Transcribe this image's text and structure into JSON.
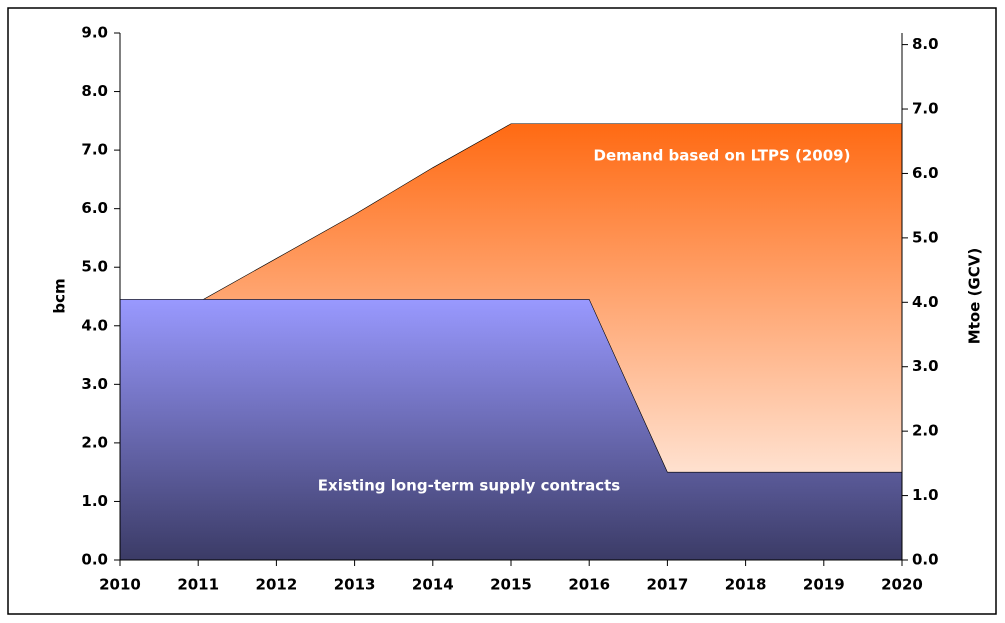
{
  "chart_data": {
    "type": "area",
    "x": [
      2010,
      2011,
      2012,
      2013,
      2014,
      2015,
      2016,
      2017,
      2018,
      2019,
      2020
    ],
    "series": [
      {
        "name": "Demand based on LTPS (2009)",
        "color": "#ff6a13",
        "values": [
          null,
          4.4,
          5.15,
          5.9,
          6.7,
          7.45,
          7.45,
          7.45,
          7.45,
          7.45,
          7.45
        ]
      },
      {
        "name": "Existing long-term supply contracts",
        "color": "#9999ff",
        "values": [
          4.45,
          4.45,
          4.45,
          4.45,
          4.45,
          4.45,
          4.45,
          1.5,
          1.5,
          1.5,
          1.5
        ]
      }
    ],
    "y_label": "bcm",
    "y2_label": "Mtoe (GCV)",
    "xlim": [
      2010,
      2020
    ],
    "xticks": [
      2010,
      2011,
      2012,
      2013,
      2014,
      2015,
      2016,
      2017,
      2018,
      2019,
      2020
    ],
    "ylim": [
      0,
      9
    ],
    "yticks": [
      {
        "value": 0,
        "label": "0.0"
      },
      {
        "value": 1,
        "label": "1.0"
      },
      {
        "value": 2,
        "label": "2.0"
      },
      {
        "value": 3,
        "label": "3.0"
      },
      {
        "value": 4,
        "label": "4.0"
      },
      {
        "value": 5,
        "label": "5.0"
      },
      {
        "value": 6,
        "label": "6.0"
      },
      {
        "value": 7,
        "label": "7.0"
      },
      {
        "value": 8,
        "label": "8.0"
      },
      {
        "value": 9,
        "label": "9.0"
      }
    ],
    "y2lim": [
      0,
      8.18
    ],
    "y2ticks": [
      {
        "value": 0,
        "label": "0.0"
      },
      {
        "value": 1,
        "label": "1.0"
      },
      {
        "value": 2,
        "label": "2.0"
      },
      {
        "value": 3,
        "label": "3.0"
      },
      {
        "value": 4,
        "label": "4.0"
      },
      {
        "value": 5,
        "label": "5.0"
      },
      {
        "value": 6,
        "label": "6.0"
      },
      {
        "value": 7,
        "label": "7.0"
      },
      {
        "value": 8,
        "label": "8.0"
      }
    ]
  }
}
